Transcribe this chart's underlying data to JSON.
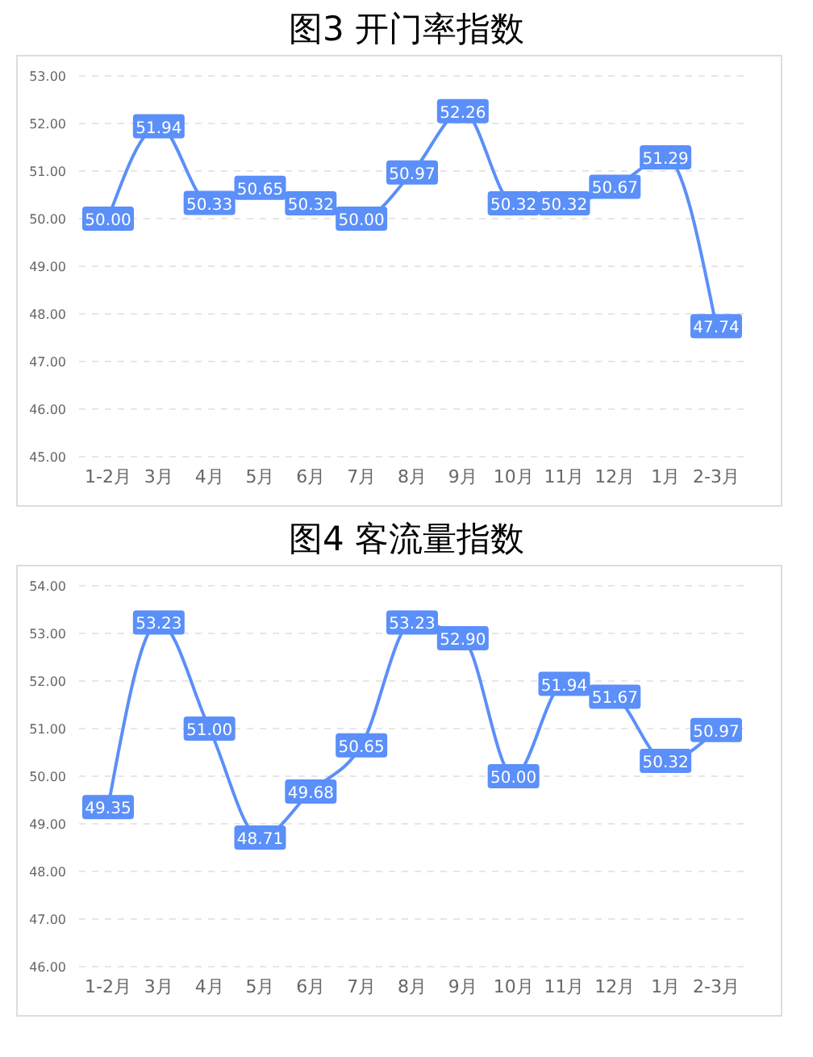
{
  "chart_data": [
    {
      "type": "line",
      "title": "图3 开门率指数",
      "categories": [
        "1-2月",
        "3月",
        "4月",
        "5月",
        "6月",
        "7月",
        "8月",
        "9月",
        "10月",
        "11月",
        "12月",
        "1月",
        "2-3月"
      ],
      "series": [
        {
          "color": "#5b8ff9",
          "values": [
            50.0,
            51.94,
            50.33,
            50.65,
            50.32,
            50.0,
            50.97,
            52.26,
            50.32,
            50.32,
            50.67,
            51.29,
            47.74
          ],
          "value_labels": [
            "50.00",
            "51.94",
            "50.33",
            "50.65",
            "50.32",
            "50.00",
            "50.97",
            "52.26",
            "50.32",
            "50.32",
            "50.67",
            "51.29",
            "47.74"
          ]
        }
      ],
      "ylim": [
        45,
        53
      ],
      "yticks": [
        {
          "value": 45,
          "label": "45.00"
        },
        {
          "value": 46,
          "label": "46.00"
        },
        {
          "value": 47,
          "label": "47.00"
        },
        {
          "value": 48,
          "label": "48.00"
        },
        {
          "value": 49,
          "label": "49.00"
        },
        {
          "value": 50,
          "label": "50.00"
        },
        {
          "value": 51,
          "label": "51.00"
        },
        {
          "value": 52,
          "label": "52.00"
        },
        {
          "value": 53,
          "label": "53.00"
        }
      ],
      "grid": "y",
      "legend": false,
      "marker": "square",
      "line_style": "solid"
    },
    {
      "type": "line",
      "title": "图4 客流量指数",
      "categories": [
        "1-2月",
        "3月",
        "4月",
        "5月",
        "6月",
        "7月",
        "8月",
        "9月",
        "10月",
        "11月",
        "12月",
        "1月",
        "2-3月"
      ],
      "series": [
        {
          "color": "#5b8ff9",
          "values": [
            49.35,
            53.23,
            51.0,
            48.71,
            49.68,
            50.65,
            53.23,
            52.9,
            50.0,
            51.94,
            51.67,
            50.32,
            50.97
          ],
          "value_labels": [
            "49.35",
            "53.23",
            "51.00",
            "48.71",
            "49.68",
            "50.65",
            "53.23",
            "52.90",
            "50.00",
            "51.94",
            "51.67",
            "50.32",
            "50.97"
          ]
        }
      ],
      "ylim": [
        46,
        54
      ],
      "yticks": [
        {
          "value": 46,
          "label": "46.00"
        },
        {
          "value": 47,
          "label": "47.00"
        },
        {
          "value": 48,
          "label": "48.00"
        },
        {
          "value": 49,
          "label": "49.00"
        },
        {
          "value": 50,
          "label": "50.00"
        },
        {
          "value": 51,
          "label": "51.00"
        },
        {
          "value": 52,
          "label": "52.00"
        },
        {
          "value": 53,
          "label": "53.00"
        },
        {
          "value": 54,
          "label": "54.00"
        }
      ],
      "grid": "y",
      "legend": false,
      "marker": "square",
      "line_style": "solid"
    }
  ]
}
